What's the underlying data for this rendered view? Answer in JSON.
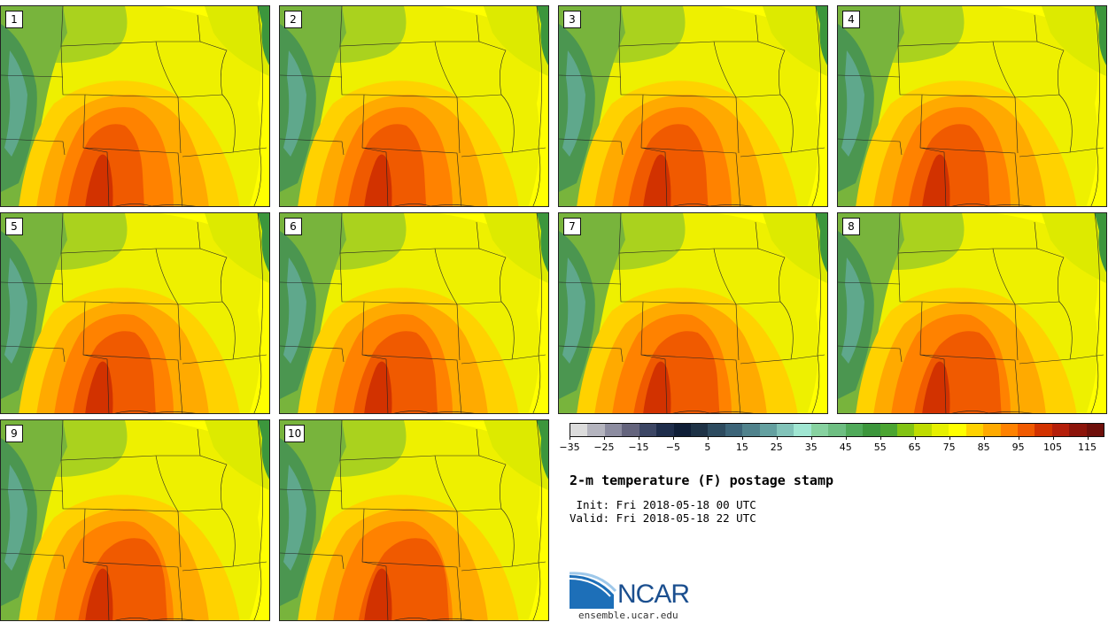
{
  "panels": [
    {
      "label": "1"
    },
    {
      "label": "2"
    },
    {
      "label": "3"
    },
    {
      "label": "4"
    },
    {
      "label": "5"
    },
    {
      "label": "6"
    },
    {
      "label": "7"
    },
    {
      "label": "8"
    },
    {
      "label": "9"
    },
    {
      "label": "10"
    }
  ],
  "colorbar": {
    "colors": [
      "#dcdcdc",
      "#b4b4be",
      "#8c8ca0",
      "#64647d",
      "#3c4664",
      "#1e2d4b",
      "#0f1e37",
      "#1e3246",
      "#2d4b5f",
      "#3c6478",
      "#50828c",
      "#64a0a0",
      "#82c3b9",
      "#a0e6d2",
      "#87d2a0",
      "#6ebe82",
      "#50aa5a",
      "#3c963c",
      "#4ba532",
      "#82c314",
      "#bedc00",
      "#e6f000",
      "#ffff00",
      "#ffd200",
      "#ffaa00",
      "#ff8200",
      "#f05a00",
      "#d23200",
      "#b41e0a",
      "#8c140a",
      "#6e0f0a"
    ],
    "tick_labels": [
      "−35",
      "−25",
      "−15",
      "−5",
      "5",
      "15",
      "25",
      "35",
      "45",
      "55",
      "65",
      "75",
      "85",
      "95",
      "105",
      "115"
    ],
    "range": [
      -35,
      120
    ]
  },
  "title": "2-m temperature (F) postage stamp",
  "init": " Init: Fri 2018-05-18 00 UTC",
  "valid": "Valid: Fri 2018-05-18 22 UTC",
  "logo": {
    "text": "NCAR",
    "site": "ensemble.ucar.edu",
    "color": "#1b4f8f"
  }
}
